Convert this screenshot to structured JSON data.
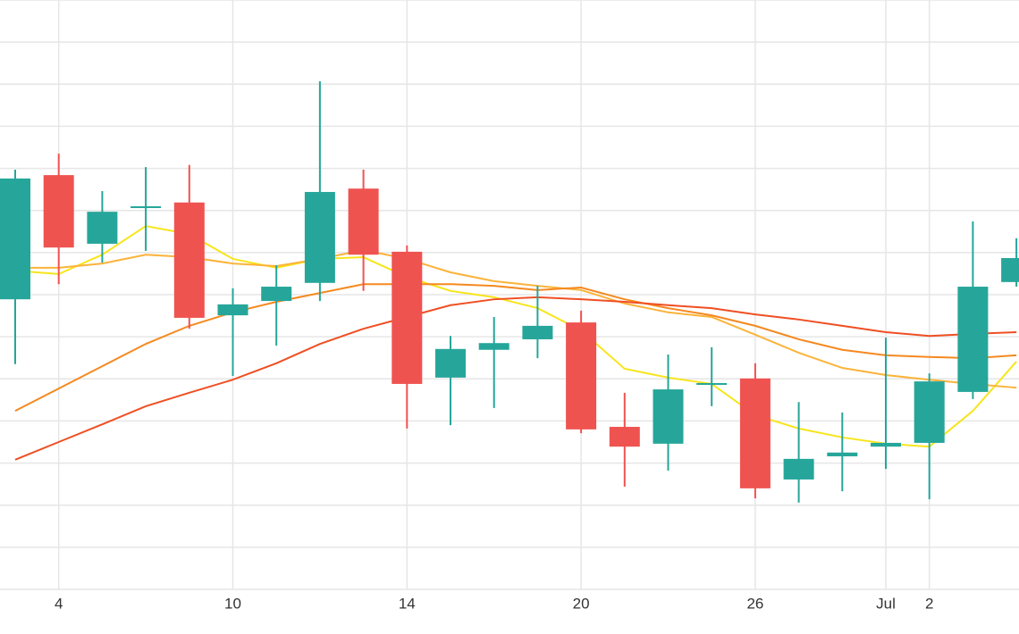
{
  "chart_data": {
    "type": "candlestick",
    "categories": [
      null,
      "4",
      null,
      null,
      null,
      "10",
      null,
      null,
      null,
      "14",
      null,
      null,
      null,
      "20",
      null,
      null,
      null,
      "26",
      null,
      null,
      "Jul",
      "2",
      null,
      null
    ],
    "open": [
      6.89,
      9.84,
      8.21,
      9.08,
      9.19,
      6.51,
      6.85,
      7.28,
      9.52,
      8.02,
      5.03,
      5.69,
      5.94,
      6.34,
      3.86,
      3.46,
      4.86,
      5.01,
      2.61,
      3.16,
      3.39,
      3.48,
      4.69,
      7.3
    ],
    "high": [
      9.97,
      10.35,
      9.46,
      10.03,
      10.08,
      7.15,
      7.7,
      12.07,
      9.97,
      8.17,
      6.02,
      6.47,
      7.21,
      6.62,
      4.67,
      5.58,
      5.75,
      5.37,
      4.45,
      4.2,
      5.98,
      5.13,
      8.74,
      8.34
    ],
    "low": [
      5.35,
      7.25,
      7.76,
      8.04,
      6.19,
      5.07,
      5.79,
      6.85,
      7.09,
      3.82,
      3.9,
      4.31,
      5.49,
      3.71,
      2.44,
      2.82,
      4.35,
      2.16,
      2.06,
      2.33,
      2.86,
      2.14,
      4.52,
      7.19
    ],
    "close": [
      9.76,
      8.12,
      8.97,
      9.1,
      6.45,
      6.77,
      7.19,
      9.44,
      7.95,
      4.88,
      5.71,
      5.85,
      6.26,
      3.8,
      3.39,
      4.75,
      4.9,
      2.4,
      3.1,
      3.25,
      3.48,
      4.94,
      7.19,
      7.87
    ],
    "up_color": "#26a69a",
    "down_color": "#ef5350",
    "ma_lines": [
      {
        "color": "#f7e51c",
        "values": [
          7.57,
          7.49,
          7.95,
          8.63,
          8.44,
          7.85,
          7.64,
          7.85,
          7.89,
          7.42,
          7.09,
          6.94,
          6.68,
          6.15,
          5.24,
          5.03,
          4.88,
          4.14,
          3.82,
          3.61,
          3.46,
          3.39,
          4.24,
          5.41
        ]
      },
      {
        "color": "#fbb33a",
        "values": [
          7.64,
          7.64,
          7.74,
          7.95,
          7.89,
          7.74,
          7.68,
          7.85,
          8.06,
          7.85,
          7.53,
          7.32,
          7.21,
          7.11,
          6.79,
          6.58,
          6.47,
          6.05,
          5.62,
          5.26,
          5.09,
          4.98,
          4.88,
          4.79
        ]
      },
      {
        "color": "#f5891f",
        "values": [
          4.24,
          4.77,
          5.3,
          5.83,
          6.26,
          6.58,
          6.83,
          7.04,
          7.25,
          7.25,
          7.25,
          7.21,
          7.11,
          7.17,
          6.89,
          6.68,
          6.51,
          6.26,
          5.94,
          5.69,
          5.56,
          5.52,
          5.49,
          5.56
        ]
      },
      {
        "color": "#ef4f23",
        "values": [
          3.08,
          3.5,
          3.92,
          4.35,
          4.67,
          4.98,
          5.37,
          5.83,
          6.19,
          6.47,
          6.75,
          6.89,
          6.94,
          6.89,
          6.83,
          6.75,
          6.68,
          6.53,
          6.41,
          6.26,
          6.11,
          6.02,
          6.07,
          6.11
        ]
      }
    ],
    "ylim": [
      0,
      14
    ],
    "yticks": [
      0,
      1,
      2,
      3,
      4,
      5,
      6,
      7,
      8,
      9,
      10,
      11,
      12,
      13,
      14
    ],
    "grid": true
  }
}
